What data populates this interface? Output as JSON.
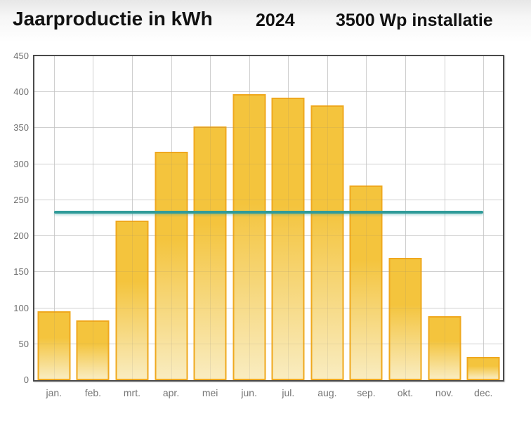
{
  "header": {
    "title": "Jaarproductie in kWh",
    "year": "2024",
    "installation": "3500 Wp installatie"
  },
  "chart_data": {
    "type": "bar",
    "title": "Jaarproductie in kWh",
    "subtitle": "2024 — 3500 Wp installatie",
    "categories": [
      "jan.",
      "feb.",
      "mrt.",
      "apr.",
      "mei",
      "jun.",
      "jul.",
      "aug.",
      "sep.",
      "okt.",
      "nov.",
      "dec."
    ],
    "values": [
      96,
      83,
      222,
      317,
      352,
      397,
      392,
      382,
      270,
      170,
      89,
      32
    ],
    "average_line_value": 233,
    "ylim": [
      0,
      450
    ],
    "ytick_step": 50,
    "ytick_labels": [
      "0",
      "50",
      "100",
      "150",
      "200",
      "250",
      "300",
      "350",
      "400",
      "450"
    ],
    "xlabel": "",
    "ylabel": "",
    "grid": true,
    "legend": false,
    "colors": {
      "bar_fill_top": "#f4c43d",
      "bar_fill_bottom": "#f9ecc0",
      "bar_border": "#efa81e",
      "average_line": "#2f9b99",
      "frame": "#4a4a4a",
      "gridline": "#dcdcdc",
      "gridline_overlay": "rgba(120,120,120,0.13)",
      "axis_label": "#6f6f6f"
    }
  }
}
